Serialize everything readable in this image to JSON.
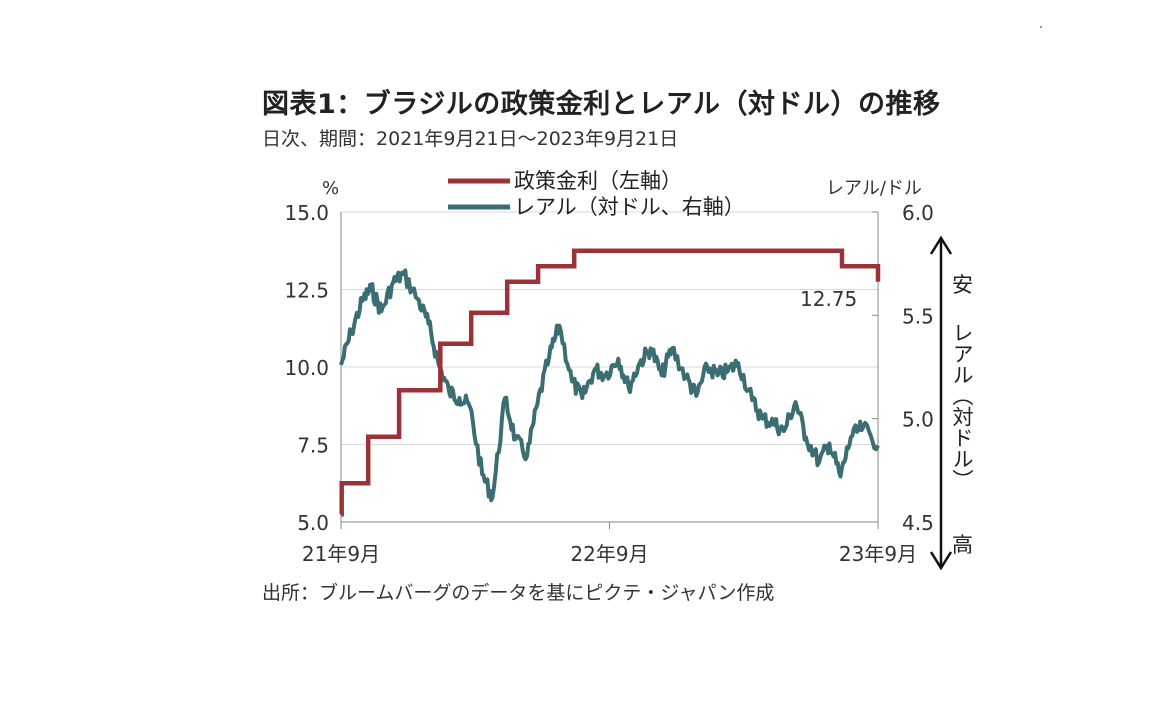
{
  "title": "図表1：ブラジルの政策金利とレアル（対ドル）の推移",
  "subtitle": "日次、期間：2021年9月21日～2023年9月21日",
  "source": "出所：ブルームバーグのデータを基にピクテ・ジャパン作成",
  "left_unit": "%",
  "right_unit": "レアル/ドル",
  "side_note": {
    "top": "安",
    "vertical": "レアル（対ドル）",
    "bottom": "高"
  },
  "annotation": "12.75",
  "chart_data": {
    "type": "line",
    "title": "図表1：ブラジルの政策金利とレアル（対ドル）の推移",
    "x_range": [
      "2021-09-21",
      "2023-09-21"
    ],
    "x_ticks": [
      "21年9月",
      "22年9月",
      "23年9月"
    ],
    "y_left": {
      "label": "%",
      "ylim": [
        5.0,
        15.0
      ],
      "ticks": [
        "5.0",
        "7.5",
        "10.0",
        "12.5",
        "15.0"
      ]
    },
    "y_right": {
      "label": "レアル/ドル",
      "ylim": [
        4.5,
        6.0
      ],
      "ticks": [
        "4.5",
        "5.0",
        "5.5",
        "6.0"
      ],
      "inverted": true
    },
    "grid": "horizontal",
    "legend_position": "top-center",
    "colors": {
      "selic": "#9b3238",
      "brl": "#3b6e72"
    },
    "series": [
      {
        "name": "政策金利（左軸）",
        "axis": "left",
        "step": true,
        "x": [
          "2021-09-21",
          "2021-09-22",
          "2021-10-28",
          "2021-12-09",
          "2022-02-03",
          "2022-03-17",
          "2022-05-05",
          "2022-06-16",
          "2022-08-04",
          "2023-08-03",
          "2023-09-21"
        ],
        "values": [
          5.25,
          6.25,
          7.75,
          9.25,
          10.75,
          11.75,
          12.75,
          13.25,
          13.75,
          13.25,
          12.75
        ]
      },
      {
        "name": "レアル（対ドル、右軸）",
        "axis": "right",
        "x": [
          "2021-09-21",
          "2021-10-05",
          "2021-10-20",
          "2021-11-01",
          "2021-11-15",
          "2021-12-01",
          "2021-12-15",
          "2022-01-03",
          "2022-01-18",
          "2022-02-01",
          "2022-02-15",
          "2022-03-01",
          "2022-03-15",
          "2022-04-01",
          "2022-04-15",
          "2022-05-02",
          "2022-05-16",
          "2022-06-01",
          "2022-06-15",
          "2022-07-01",
          "2022-07-15",
          "2022-08-01",
          "2022-08-15",
          "2022-09-01",
          "2022-09-15",
          "2022-10-03",
          "2022-10-17",
          "2022-11-01",
          "2022-11-16",
          "2022-12-01",
          "2022-12-15",
          "2023-01-03",
          "2023-01-17",
          "2023-02-01",
          "2023-02-15",
          "2023-03-01",
          "2023-03-15",
          "2023-04-03",
          "2023-04-17",
          "2023-05-02",
          "2023-05-16",
          "2023-06-01",
          "2023-06-15",
          "2023-07-03",
          "2023-07-17",
          "2023-08-01",
          "2023-08-15",
          "2023-09-01",
          "2023-09-21"
        ],
        "values": [
          5.26,
          5.42,
          5.57,
          5.63,
          5.52,
          5.66,
          5.7,
          5.58,
          5.46,
          5.26,
          5.13,
          5.1,
          5.06,
          4.73,
          4.62,
          5.1,
          4.9,
          4.82,
          5.07,
          5.3,
          5.45,
          5.18,
          5.1,
          5.24,
          5.21,
          5.29,
          5.15,
          5.27,
          5.34,
          5.21,
          5.34,
          5.2,
          5.11,
          5.25,
          5.21,
          5.23,
          5.27,
          5.09,
          5.0,
          4.98,
          4.94,
          5.08,
          4.91,
          4.79,
          4.88,
          4.72,
          4.91,
          4.96,
          4.87
        ]
      }
    ]
  }
}
